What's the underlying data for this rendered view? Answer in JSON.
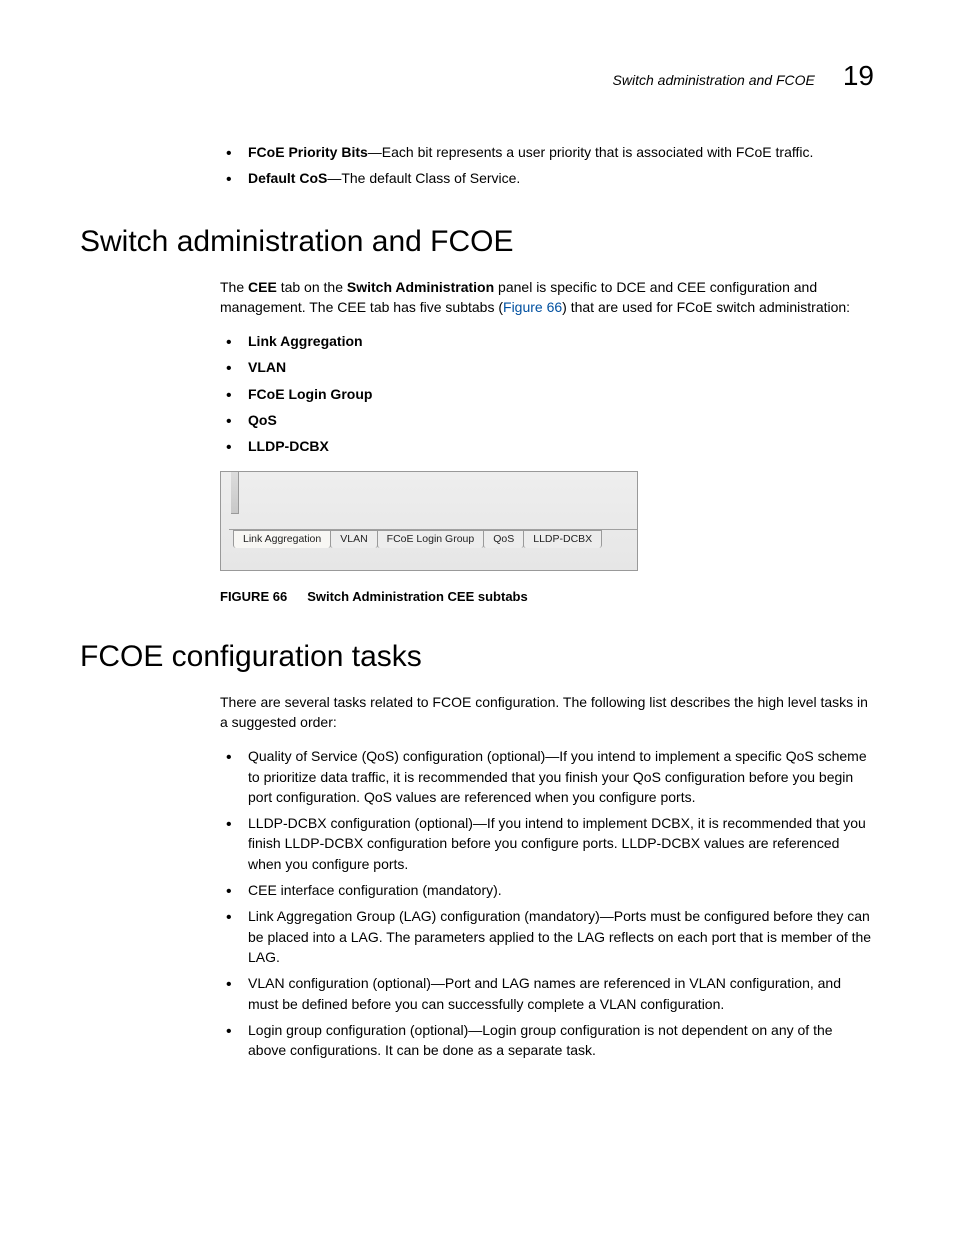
{
  "header": {
    "running_title": "Switch administration and FCOE",
    "chapter_number": "19"
  },
  "intro_bullets": [
    {
      "term": "FCoE Priority Bits",
      "desc": "—Each bit represents a user priority that is associated with FCoE traffic."
    },
    {
      "term": "Default CoS",
      "desc": "—The default Class of Service."
    }
  ],
  "section1": {
    "title": "Switch administration and FCOE",
    "para_pre": "The ",
    "para_b1": "CEE",
    "para_mid1": " tab on the ",
    "para_b2": "Switch Administration",
    "para_mid2": " panel is specific to DCE and CEE configuration and management. The CEE tab has five subtabs (",
    "figref": "Figure 66",
    "para_post": ") that are used for FCoE switch administration:",
    "subtabs_list": [
      "Link Aggregation",
      "VLAN",
      "FCoE Login Group",
      "QoS",
      "LLDP-DCBX"
    ],
    "figure": {
      "tabs": [
        "Link Aggregation",
        "VLAN",
        "FCoE Login Group",
        "QoS",
        "LLDP-DCBX"
      ],
      "active_index": 0,
      "caption_label": "FIGURE 66",
      "caption_text": "Switch Administration CEE subtabs",
      "colors": {
        "box_border": "#999999",
        "box_bg_top": "#eeeeee",
        "box_bg_bottom": "#e6e6e6",
        "tab_bg": "#ededed",
        "tab_active_bg": "#f8f7f4",
        "tab_border": "#9a9a9a",
        "tab_text": "#222222"
      }
    }
  },
  "section2": {
    "title": "FCOE configuration tasks",
    "intro": "There are several tasks related to FCOE configuration. The following list describes the high level tasks in a suggested order:",
    "bullets": [
      "Quality of Service (QoS) configuration (optional)—If you intend to implement a specific QoS scheme to prioritize data traffic, it is recommended that you finish your QoS configuration before you begin port configuration. QoS values are referenced when you configure ports.",
      "LLDP-DCBX configuration (optional)—If you intend to implement DCBX, it is recommended that you finish LLDP-DCBX configuration before you configure ports. LLDP-DCBX values are referenced when you configure ports.",
      "CEE interface configuration (mandatory).",
      "Link Aggregation Group (LAG) configuration (mandatory)—Ports must be configured before they can be placed into a LAG. The parameters applied to the LAG reflects on each port that is member of the LAG.",
      "VLAN configuration (optional)—Port and LAG names are referenced in VLAN configuration, and must be defined before you can successfully complete a VLAN configuration.",
      "Login group configuration (optional)—Login group configuration is not dependent on any of the above configurations. It can be done as a separate task."
    ]
  }
}
